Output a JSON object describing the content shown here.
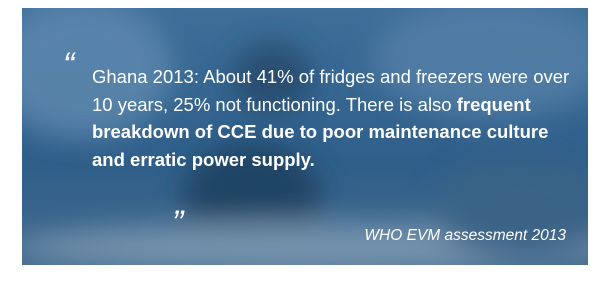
{
  "quote": {
    "open_mark": "“",
    "text": "Ghana 2013: About 41% of fridges and freezers were over 10 years, 25% not functioning. There is also ",
    "emphasis": "frequent breakdown of CCE due to poor maintenance culture and erratic power supply.",
    "close_mark": "”",
    "source": "WHO EVM assessment 2013"
  }
}
